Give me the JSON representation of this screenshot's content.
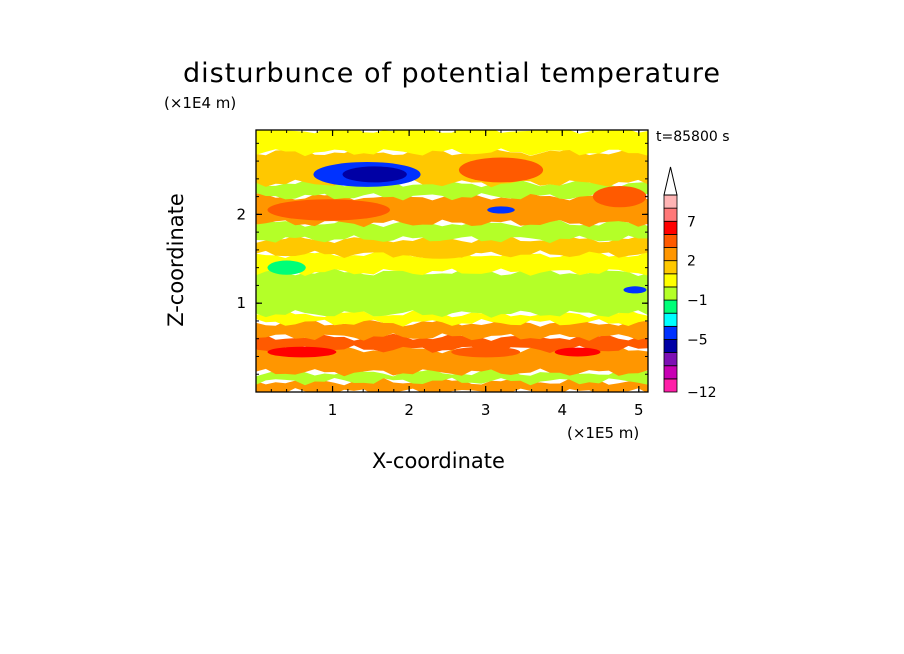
{
  "title": "disturbunce of potential temperature",
  "time_label": "t=85800 s",
  "chart_data": {
    "type": "heatmap",
    "title": "disturbunce of potential temperature",
    "xlabel": "X-coordinate",
    "ylabel": "Z-coordinate",
    "x_unit": "(×1E5 m)",
    "y_unit": "(×1E4 m)",
    "xlim": [
      0,
      5.12
    ],
    "ylim": [
      0,
      2.95
    ],
    "x_ticks": [
      1,
      2,
      3,
      4,
      5
    ],
    "y_ticks": [
      1,
      2
    ],
    "x_tick_labels": [
      "1",
      "2",
      "3",
      "4",
      "5"
    ],
    "y_tick_labels": [
      "1",
      "2"
    ],
    "grid": false,
    "colorbar": {
      "levels": [
        -12,
        -10,
        -8,
        -6,
        -5,
        -4,
        -3,
        -1,
        0,
        1,
        2,
        3,
        5,
        7,
        9,
        11
      ],
      "colors": [
        "#ff1fa8",
        "#c800b4",
        "#7d10b4",
        "#0000a5",
        "#0032ff",
        "#00ffff",
        "#00ff78",
        "#b4ff28",
        "#ffff00",
        "#ffc800",
        "#ff9600",
        "#ff5a00",
        "#ff0000",
        "#ff7878",
        "#ffb4b4"
      ],
      "labeled_levels": [
        "-12",
        "-5",
        "-1",
        "2",
        "7"
      ],
      "extend": "max"
    },
    "bands": [
      {
        "z": [
          0.0,
          0.12
        ],
        "value": 2
      },
      {
        "z": [
          0.12,
          0.22
        ],
        "value": -1
      },
      {
        "z": [
          0.22,
          0.48
        ],
        "value": 2
      },
      {
        "z": [
          0.48,
          0.62
        ],
        "value": 3
      },
      {
        "z": [
          0.62,
          0.78
        ],
        "value": 2
      },
      {
        "z": [
          0.78,
          0.88
        ],
        "value": 0
      },
      {
        "z": [
          0.88,
          1.35
        ],
        "value": -1
      },
      {
        "z": [
          1.35,
          1.55
        ],
        "value": 0
      },
      {
        "z": [
          1.55,
          1.72
        ],
        "value": 1
      },
      {
        "z": [
          1.72,
          1.9
        ],
        "value": -1
      },
      {
        "z": [
          1.9,
          2.2
        ],
        "value": 2
      },
      {
        "z": [
          2.2,
          2.35
        ],
        "value": -1
      },
      {
        "z": [
          2.35,
          2.7
        ],
        "value": 1
      },
      {
        "z": [
          2.7,
          2.95
        ],
        "value": 0
      }
    ],
    "features": [
      {
        "x": 1.45,
        "z": 2.45,
        "rx": 0.7,
        "rz": 0.14,
        "value": -5
      },
      {
        "x": 1.55,
        "z": 2.45,
        "rx": 0.42,
        "rz": 0.09,
        "value": -6
      },
      {
        "x": 3.2,
        "z": 2.5,
        "rx": 0.55,
        "rz": 0.14,
        "value": 3
      },
      {
        "x": 0.95,
        "z": 2.05,
        "rx": 0.8,
        "rz": 0.12,
        "value": 3
      },
      {
        "x": 3.2,
        "z": 2.05,
        "rx": 0.18,
        "rz": 0.04,
        "value": -5
      },
      {
        "x": 4.75,
        "z": 2.2,
        "rx": 0.35,
        "rz": 0.12,
        "value": 3
      },
      {
        "x": 0.6,
        "z": 0.45,
        "rx": 0.45,
        "rz": 0.06,
        "value": 5
      },
      {
        "x": 3.0,
        "z": 0.45,
        "rx": 0.45,
        "rz": 0.06,
        "value": 3
      },
      {
        "x": 4.2,
        "z": 0.45,
        "rx": 0.3,
        "rz": 0.05,
        "value": 5
      },
      {
        "x": 1.0,
        "z": 1.12,
        "rx": 0.9,
        "rz": 0.06,
        "value": -1
      },
      {
        "x": 4.95,
        "z": 1.15,
        "rx": 0.15,
        "rz": 0.04,
        "value": -5
      },
      {
        "x": 0.4,
        "z": 1.4,
        "rx": 0.25,
        "rz": 0.08,
        "value": -3
      },
      {
        "x": 2.4,
        "z": 1.6,
        "rx": 0.5,
        "rz": 0.1,
        "value": 1
      }
    ]
  }
}
